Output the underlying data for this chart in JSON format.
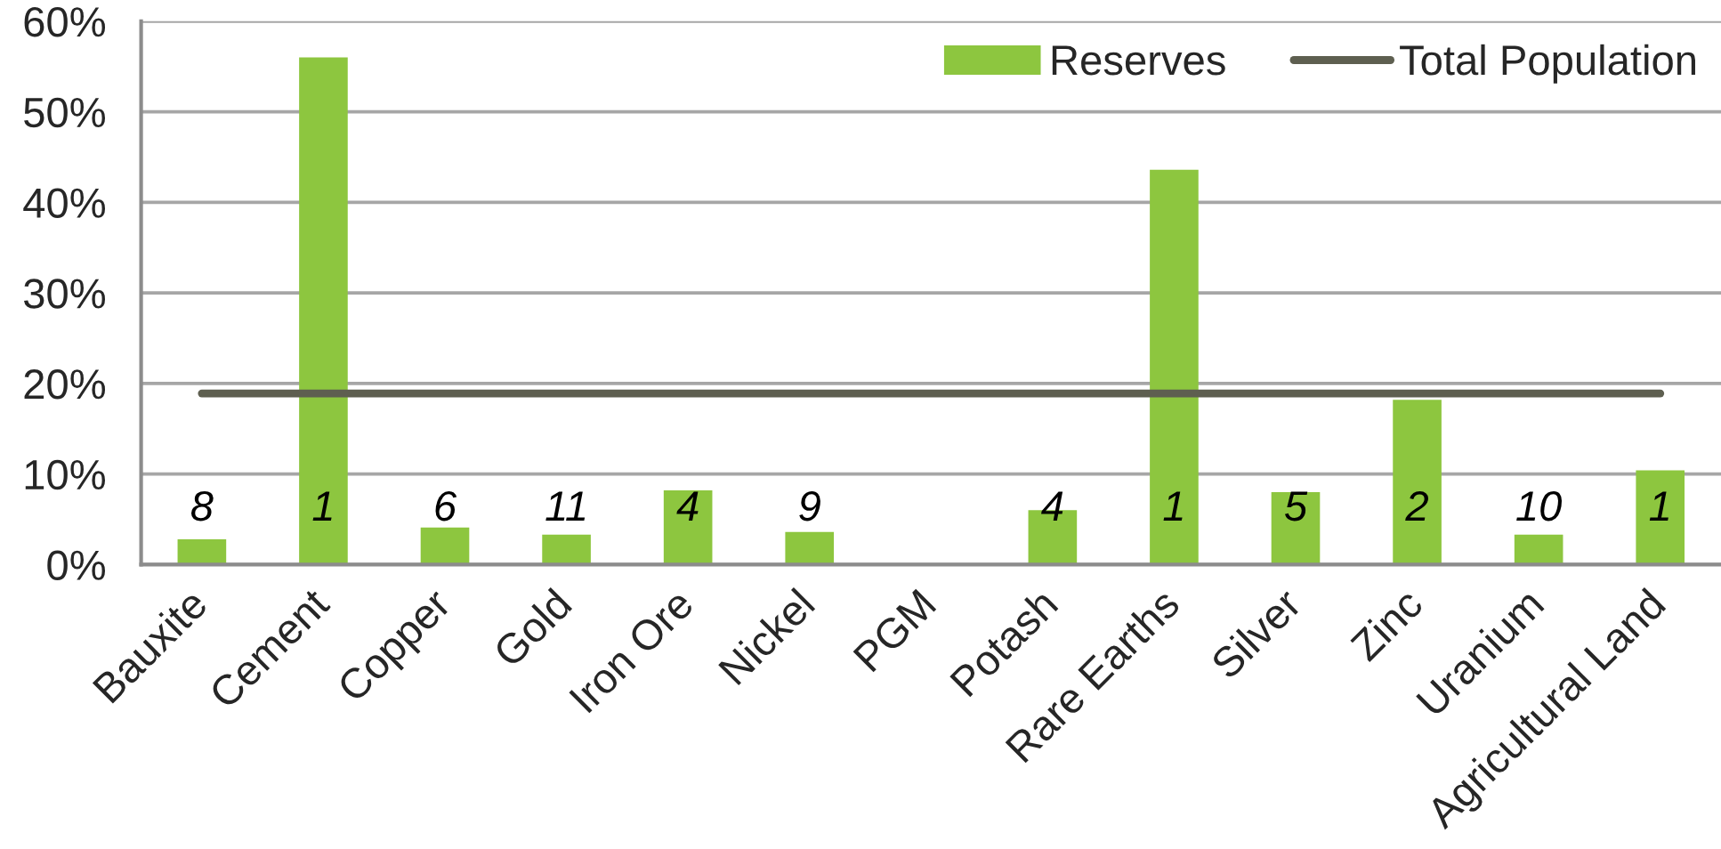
{
  "chart_data": {
    "type": "bar",
    "categories": [
      "Bauxite",
      "Cement",
      "Copper",
      "Gold",
      "Iron Ore",
      "Nickel",
      "PGM",
      "Potash",
      "Rare Earths",
      "Silver",
      "Zinc",
      "Uranium",
      "Agricultural Land"
    ],
    "series": [
      {
        "name": "Reserves",
        "color": "#8dc63f",
        "values": [
          2.8,
          56.0,
          4.1,
          3.3,
          8.2,
          3.6,
          null,
          6.0,
          43.6,
          8.0,
          18.2,
          3.3,
          10.4
        ]
      },
      {
        "name": "Total Population",
        "type": "line",
        "color": "#5e5f50",
        "values": [
          18.9,
          18.9,
          18.9,
          18.9,
          18.9,
          18.9,
          18.9,
          18.9,
          18.9,
          18.9,
          18.9,
          18.9,
          18.9
        ]
      }
    ],
    "ylim": [
      0,
      60
    ],
    "yticks": [
      {
        "value": 0,
        "label": "0%"
      },
      {
        "value": 10,
        "label": "10%"
      },
      {
        "value": 20,
        "label": "20%"
      },
      {
        "value": 30,
        "label": "30%"
      },
      {
        "value": 40,
        "label": "40%"
      },
      {
        "value": 50,
        "label": "50%"
      },
      {
        "value": 60,
        "label": "60%"
      }
    ],
    "grid": "y",
    "legend": "top right",
    "annotations": [
      "8",
      "1",
      "6",
      "11",
      "4",
      "9",
      "4",
      "1",
      "5",
      "2",
      "10",
      "1"
    ]
  }
}
